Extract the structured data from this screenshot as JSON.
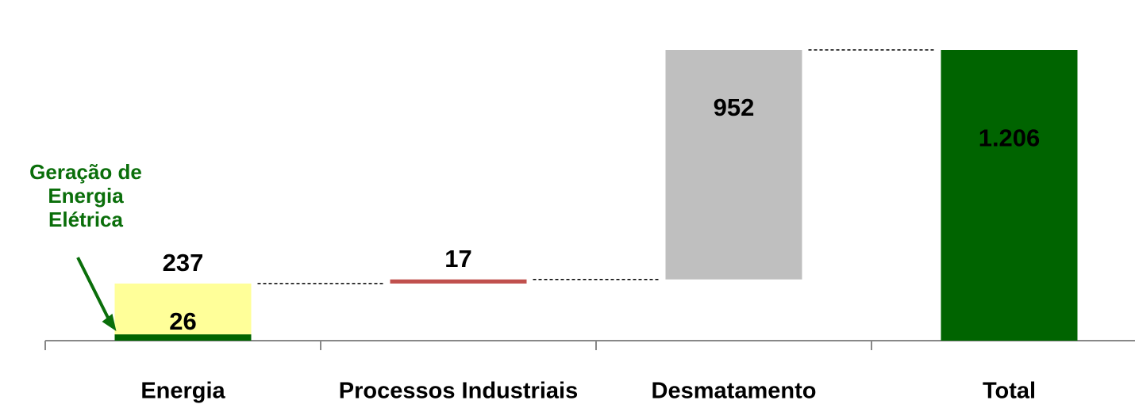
{
  "chart_data": {
    "type": "waterfall",
    "categories": [
      "Energia",
      "Processos Industriais",
      "Desmatamento",
      "Total"
    ],
    "values": [
      237,
      17,
      952,
      1206
    ],
    "value_labels": [
      "237",
      "17",
      "952",
      "1.206"
    ],
    "is_total": [
      false,
      false,
      false,
      true
    ],
    "colors": [
      "#ffff99",
      "#c0504d",
      "#bfbfbf",
      "#006400"
    ],
    "highlight": {
      "name": "Geração de Energia Elétrica",
      "category": 0,
      "value": 26,
      "color": "#006400"
    }
  }
}
